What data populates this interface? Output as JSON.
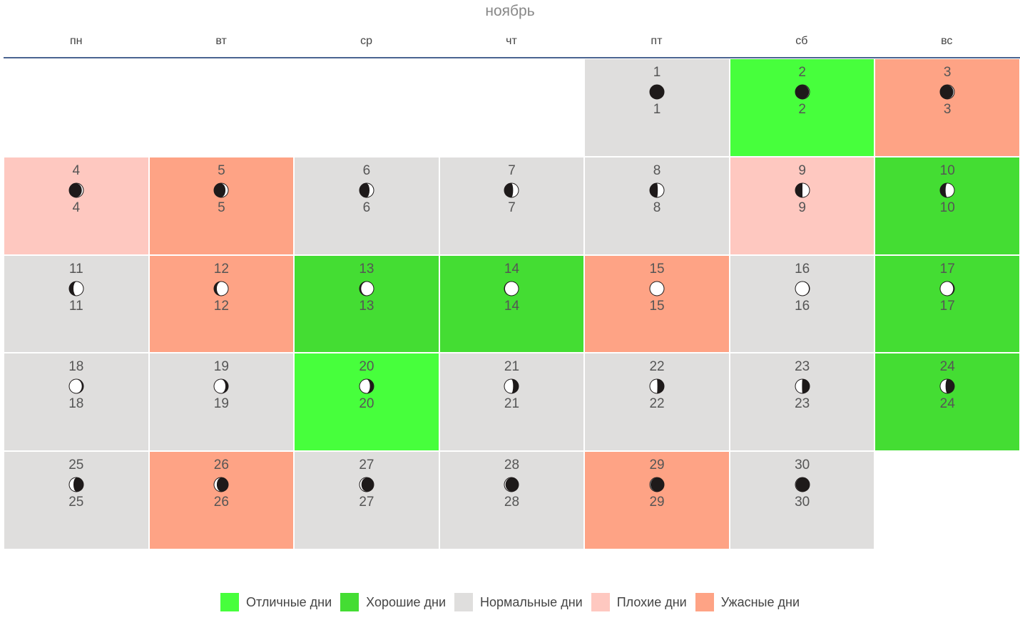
{
  "month": "ноябрь",
  "weekdays": [
    "пн",
    "вт",
    "ср",
    "чт",
    "пт",
    "сб",
    "вс"
  ],
  "start_offset": 4,
  "colors": {
    "excellent": "#47ff3c",
    "good": "#44dd33",
    "normal": "#dfdedd",
    "bad": "#fec8c0",
    "awful": "#fea385"
  },
  "legend": [
    {
      "key": "excellent",
      "label": "Отличные дни"
    },
    {
      "key": "good",
      "label": "Хорошие дни"
    },
    {
      "key": "normal",
      "label": "Нормальные дни"
    },
    {
      "key": "bad",
      "label": "Плохие дни"
    },
    {
      "key": "awful",
      "label": "Ужасные дни"
    }
  ],
  "days": [
    {
      "day": "1",
      "lunar": "1",
      "type": "normal",
      "phase": 0.0
    },
    {
      "day": "2",
      "lunar": "2",
      "type": "excellent",
      "phase": 0.04
    },
    {
      "day": "3",
      "lunar": "3",
      "type": "awful",
      "phase": 0.07
    },
    {
      "day": "4",
      "lunar": "4",
      "type": "bad",
      "phase": 0.1
    },
    {
      "day": "5",
      "lunar": "5",
      "type": "awful",
      "phase": 0.14
    },
    {
      "day": "6",
      "lunar": "6",
      "type": "normal",
      "phase": 0.18
    },
    {
      "day": "7",
      "lunar": "7",
      "type": "normal",
      "phase": 0.21
    },
    {
      "day": "8",
      "lunar": "8",
      "type": "normal",
      "phase": 0.23
    },
    {
      "day": "9",
      "lunar": "9",
      "type": "bad",
      "phase": 0.25
    },
    {
      "day": "10",
      "lunar": "10",
      "type": "good",
      "phase": 0.29
    },
    {
      "day": "11",
      "lunar": "11",
      "type": "normal",
      "phase": 0.32
    },
    {
      "day": "12",
      "lunar": "12",
      "type": "awful",
      "phase": 0.36
    },
    {
      "day": "13",
      "lunar": "13",
      "type": "good",
      "phase": 0.4
    },
    {
      "day": "14",
      "lunar": "14",
      "type": "good",
      "phase": 0.45
    },
    {
      "day": "15",
      "lunar": "15",
      "type": "awful",
      "phase": 0.5
    },
    {
      "day": "16",
      "lunar": "16",
      "type": "normal",
      "phase": 0.55
    },
    {
      "day": "17",
      "lunar": "17",
      "type": "good",
      "phase": 0.58
    },
    {
      "day": "18",
      "lunar": "18",
      "type": "normal",
      "phase": 0.6
    },
    {
      "day": "19",
      "lunar": "19",
      "type": "normal",
      "phase": 0.64
    },
    {
      "day": "20",
      "lunar": "20",
      "type": "excellent",
      "phase": 0.67
    },
    {
      "day": "21",
      "lunar": "21",
      "type": "normal",
      "phase": 0.71
    },
    {
      "day": "22",
      "lunar": "22",
      "type": "normal",
      "phase": 0.74
    },
    {
      "day": "23",
      "lunar": "23",
      "type": "normal",
      "phase": 0.76
    },
    {
      "day": "24",
      "lunar": "24",
      "type": "good",
      "phase": 0.79
    },
    {
      "day": "25",
      "lunar": "25",
      "type": "normal",
      "phase": 0.82
    },
    {
      "day": "26",
      "lunar": "26",
      "type": "awful",
      "phase": 0.86
    },
    {
      "day": "27",
      "lunar": "27",
      "type": "normal",
      "phase": 0.89
    },
    {
      "day": "28",
      "lunar": "28",
      "type": "normal",
      "phase": 0.92
    },
    {
      "day": "29",
      "lunar": "29",
      "type": "awful",
      "phase": 0.95
    },
    {
      "day": "30",
      "lunar": "30",
      "type": "normal",
      "phase": 0.97
    }
  ]
}
